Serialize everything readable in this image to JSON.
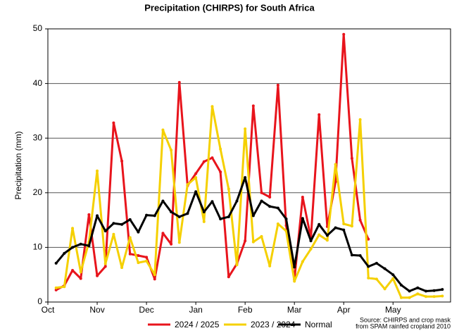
{
  "chart_data": {
    "type": "line",
    "title": "Precipitation (CHIRPS) for South Africa",
    "y_label": "Precipitation (mm)",
    "source": [
      "Source: CHIRPS and crop mask",
      "from SPAM rainfed cropland 2010"
    ],
    "categories": [
      "Oct",
      null,
      null,
      null,
      null,
      null,
      "Nov",
      null,
      null,
      null,
      null,
      null,
      "Dec",
      null,
      null,
      null,
      null,
      null,
      "Jan",
      null,
      null,
      null,
      null,
      null,
      "Feb",
      null,
      null,
      null,
      null,
      null,
      "Mar",
      null,
      null,
      null,
      null,
      null,
      "Apr",
      null,
      null,
      null,
      null,
      null,
      "May",
      null,
      null,
      null,
      null,
      null
    ],
    "series": [
      {
        "name": "2024 / 2025",
        "color": "#e8141c",
        "values": [
          2.2,
          3,
          5.8,
          4.3,
          16,
          4.8,
          6.5,
          32.8,
          25.8,
          8.8,
          8.5,
          8.2,
          4.2,
          12.6,
          10.6,
          40.2,
          21.3,
          23.5,
          25.7,
          26.4,
          23.8,
          4.6,
          7,
          11.2,
          35.9,
          20,
          19.2,
          39.7,
          14,
          4.1,
          19.2,
          11.7,
          34.3,
          13.8,
          22,
          49,
          26.3,
          15,
          11.5,
          null,
          null,
          null,
          null,
          null,
          null,
          null,
          null,
          null
        ]
      },
      {
        "name": "2023 / 2024",
        "color": "#f5d000",
        "values": [
          2.6,
          2.8,
          13.5,
          5.5,
          11,
          24,
          7,
          12.4,
          6.3,
          11.8,
          7.2,
          7.5,
          5,
          31.5,
          27.8,
          10.9,
          21.5,
          22.8,
          14.7,
          35.8,
          28,
          20.7,
          6.8,
          31.7,
          11,
          12,
          6.6,
          14.3,
          13,
          3.8,
          7.4,
          9.7,
          12.3,
          11.3,
          25.2,
          14.3,
          13.9,
          33.4,
          4.4,
          4.2,
          2.4,
          4.3,
          0.8,
          0.8,
          1.5,
          1,
          1,
          1.1
        ]
      },
      {
        "name": "Normal",
        "color": "#000000",
        "values": [
          7.1,
          8.9,
          10,
          10.6,
          10.3,
          15.8,
          13,
          14.4,
          14.2,
          15.1,
          12.8,
          15.9,
          15.8,
          18.5,
          16.5,
          15.6,
          16.2,
          20.2,
          16.5,
          18.4,
          15.2,
          15.6,
          18.5,
          22.8,
          15.8,
          18.5,
          17.5,
          17.2,
          15.2,
          6.4,
          15.3,
          11.2,
          14.2,
          12.2,
          13.6,
          13.2,
          8.6,
          8.5,
          6.5,
          7.1,
          6.1,
          5,
          3.1,
          2,
          2.6,
          2,
          2.1,
          2.3
        ]
      }
    ],
    "ylim": [
      0,
      50
    ],
    "yticks": [
      0,
      10,
      20,
      30,
      40,
      50
    ],
    "grid": true,
    "legend": "bottom"
  }
}
